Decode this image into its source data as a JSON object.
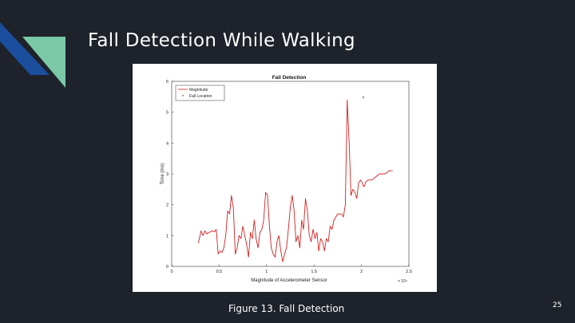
{
  "slide": {
    "title": "Fall Detection While Walking",
    "caption": "Figure 13. Fall Detection",
    "page_number": "25",
    "colors": {
      "background": "#1d222b",
      "accent_dark": "#1b4e9c",
      "accent_light": "#7ac8a6"
    }
  },
  "chart_data": {
    "type": "line",
    "title": "Fall Detection",
    "xlabel": "Magnitude of Accelerometer Sensor",
    "ylabel": "Time (ms)",
    "x_exponent_label": "× 10⁴",
    "xlim": [
      0,
      2.5
    ],
    "ylim": [
      0,
      6
    ],
    "xticks": [
      0,
      0.5,
      1,
      1.5,
      2,
      2.5
    ],
    "xtick_labels": [
      "0",
      "0.5",
      "1",
      "1.5",
      "2",
      "2.5"
    ],
    "yticks": [
      0,
      1,
      2,
      3,
      4,
      5,
      6
    ],
    "ytick_labels": [
      "0",
      "1",
      "2",
      "3",
      "4",
      "5",
      "6"
    ],
    "legend": {
      "placement": "top-left",
      "entries": [
        "Magnitude",
        "Fall Location"
      ]
    },
    "series": [
      {
        "name": "Magnitude",
        "color": "#d42020",
        "x": [
          0.28,
          0.31,
          0.33,
          0.35,
          0.37,
          0.39,
          0.41,
          0.43,
          0.45,
          0.47,
          0.49,
          0.51,
          0.53,
          0.55,
          0.57,
          0.59,
          0.61,
          0.63,
          0.65,
          0.67,
          0.69,
          0.71,
          0.73,
          0.75,
          0.77,
          0.79,
          0.81,
          0.83,
          0.85,
          0.87,
          0.89,
          0.91,
          0.93,
          0.95,
          0.97,
          0.99,
          1.01,
          1.03,
          1.05,
          1.07,
          1.09,
          1.11,
          1.13,
          1.15,
          1.17,
          1.19,
          1.21,
          1.23,
          1.25,
          1.27,
          1.29,
          1.31,
          1.33,
          1.35,
          1.37,
          1.39,
          1.41,
          1.43,
          1.45,
          1.47,
          1.49,
          1.51,
          1.53,
          1.55,
          1.57,
          1.59,
          1.61,
          1.63,
          1.65,
          1.67,
          1.69,
          1.71,
          1.73,
          1.75,
          1.77,
          1.79,
          1.81,
          1.83,
          1.85,
          1.87,
          1.89,
          1.91,
          1.93,
          1.95,
          1.97,
          1.99,
          2.01,
          2.02,
          2.03,
          2.04,
          2.05,
          2.07,
          2.09,
          2.11,
          2.13,
          2.15,
          2.17,
          2.19,
          2.21,
          2.23,
          2.25,
          2.27,
          2.29,
          2.31,
          2.33
        ],
        "y": [
          0.75,
          1.15,
          1.0,
          1.15,
          1.05,
          1.1,
          1.12,
          1.15,
          1.12,
          1.2,
          0.4,
          0.5,
          0.45,
          0.6,
          1.0,
          1.8,
          1.7,
          2.3,
          1.9,
          0.4,
          0.6,
          1.0,
          0.9,
          1.3,
          1.0,
          0.7,
          0.3,
          1.1,
          0.9,
          1.5,
          0.9,
          0.6,
          1.1,
          1.2,
          1.5,
          2.4,
          2.3,
          1.3,
          0.6,
          0.4,
          0.3,
          0.8,
          1.0,
          0.5,
          0.15,
          0.4,
          0.6,
          1.2,
          1.9,
          2.3,
          1.8,
          0.8,
          1.0,
          0.6,
          1.5,
          1.2,
          2.2,
          1.8,
          1.0,
          0.8,
          1.2,
          0.9,
          1.1,
          0.5,
          0.9,
          0.8,
          0.5,
          0.9,
          0.8,
          1.3,
          1.2,
          1.5,
          1.6,
          1.7,
          1.7,
          1.7,
          1.6,
          2.0,
          5.4,
          4.0,
          2.3,
          2.5,
          2.4,
          2.2,
          2.7,
          2.8,
          2.7,
          2.6,
          2.6,
          2.7,
          2.75,
          2.8,
          2.8,
          2.8,
          2.85,
          2.9,
          2.95,
          3.0,
          3.0,
          3.0,
          3.0,
          3.05,
          3.1,
          3.1,
          3.1
        ]
      },
      {
        "name": "Fall Location",
        "marker": "asterisk",
        "color": "#555555",
        "x": [
          2.02
        ],
        "y": [
          5.45
        ]
      }
    ]
  }
}
